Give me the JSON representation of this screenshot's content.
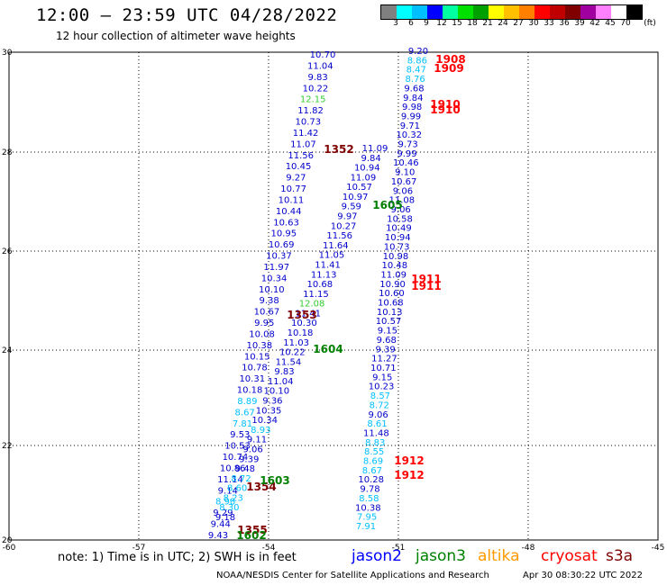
{
  "header": {
    "title": "12:00 — 23:59 UTC 04/28/2022",
    "subtitle": "12 hour collection of altimeter wave heights"
  },
  "colorbar": {
    "unit_label": "(ft)",
    "ticks": [
      "3",
      "6",
      "9",
      "12",
      "15",
      "18",
      "21",
      "24",
      "27",
      "30",
      "33",
      "36",
      "39",
      "42",
      "45",
      "70"
    ],
    "colors": [
      "#808080",
      "#00ffff",
      "#00bfff",
      "#0000ff",
      "#00ffa0",
      "#00e000",
      "#00a000",
      "#ffff00",
      "#ffc000",
      "#ff8000",
      "#ff0000",
      "#c00000",
      "#800000",
      "#a000a0",
      "#ff80ff",
      "#ffffff",
      "#000000"
    ]
  },
  "map": {
    "lon_ticks": [
      "-60",
      "-57",
      "-54",
      "-51",
      "-48",
      "-45"
    ],
    "lat_ticks": [
      "30",
      "28",
      "26",
      "24",
      "22",
      "20"
    ]
  },
  "tracks": {
    "jason2_a": [
      "10.70",
      "11.04",
      "9.83",
      "10.22",
      "12.15",
      "11.82",
      "10.73",
      "11.42",
      "11.07",
      "11.56",
      "10.45",
      "9.27",
      "10.77",
      "10.11",
      "10.44",
      "10.63",
      "10.95",
      "10.69",
      "10.37",
      "11.97",
      "10.34",
      "10.10",
      "9.38",
      "10.67",
      "9.95",
      "10.08",
      "10.38",
      "10.15",
      "10.78",
      "10.31",
      "10.18",
      "8.89",
      "8.67",
      "7.81",
      "9.53",
      "10.53",
      "10.74",
      "10.86",
      "11.14",
      "9.14",
      "8.98",
      "9.29",
      "9.44",
      "9.43"
    ],
    "jason2_b": [
      "11.09",
      "9.84",
      "10.94",
      "11.09",
      "10.57",
      "10.97",
      "9.59",
      "9.97",
      "10.27",
      "11.56",
      "11.64",
      "11.05",
      "11.41",
      "11.13",
      "10.68",
      "11.15",
      "12.08",
      "11.41",
      "10.30",
      "10.18",
      "11.03",
      "10.22",
      "11.54",
      "9.83",
      "11.04",
      "10.10",
      "9.36",
      "10.35",
      "10.34",
      "8.93",
      "9.11",
      "9.06",
      "9.39",
      "9.48",
      "8.72",
      "8.60",
      "8.23",
      "8.30",
      "9.18"
    ],
    "jason2_c": [
      "9.20",
      "8.86",
      "8.47",
      "8.76",
      "9.68",
      "9.84",
      "9.98",
      "9.99",
      "9.71",
      "10.32",
      "9.73",
      "9.99",
      "10.46",
      "9.10",
      "10.67",
      "9.06",
      "11.08",
      "9.06",
      "10.58",
      "10.49",
      "10.94",
      "10.73",
      "10.98",
      "10.48",
      "11.09",
      "10.90",
      "10.60",
      "10.68",
      "10.13",
      "10.57",
      "9.15",
      "9.68",
      "9.39",
      "11.27",
      "10.71",
      "9.15",
      "10.23",
      "8.57",
      "8.72",
      "9.06",
      "8.61",
      "11.48",
      "8.83",
      "8.55",
      "8.69",
      "8.67",
      "10.28",
      "9.78",
      "8.58",
      "10.38",
      "7.95",
      "7.91"
    ],
    "labels": [
      {
        "t": "1908",
        "sat": "cryosat"
      },
      {
        "t": "1909",
        "sat": "cryosat"
      },
      {
        "t": "1910",
        "sat": "cryosat"
      },
      {
        "t": "1910",
        "sat": "cryosat"
      },
      {
        "t": "1911",
        "sat": "cryosat"
      },
      {
        "t": "1911",
        "sat": "cryosat"
      },
      {
        "t": "1912",
        "sat": "cryosat"
      },
      {
        "t": "1912",
        "sat": "cryosat"
      },
      {
        "t": "1352",
        "sat": "s3a"
      },
      {
        "t": "1353",
        "sat": "s3a"
      },
      {
        "t": "1354",
        "sat": "s3a"
      },
      {
        "t": "1355",
        "sat": "s3a"
      },
      {
        "t": "1605",
        "sat": "jason3"
      },
      {
        "t": "1604",
        "sat": "jason3"
      },
      {
        "t": "1603",
        "sat": "jason3"
      },
      {
        "t": "1602",
        "sat": "jason3"
      }
    ]
  },
  "legend": {
    "note": "note: 1) Time is in UTC; 2) SWH is in feet",
    "sats": [
      {
        "name": "jason2",
        "color": "#0000ff"
      },
      {
        "name": "jason3",
        "color": "#008000"
      },
      {
        "name": "altika",
        "color": "#ff9900"
      },
      {
        "name": "cryosat",
        "color": "#ff0000"
      },
      {
        "name": "s3a",
        "color": "#800000"
      }
    ]
  },
  "footer": {
    "credit": "NOAA/NESDIS Center for Satellite Applications and Research",
    "date": "Apr 30 08:30:22 UTC 2022"
  }
}
